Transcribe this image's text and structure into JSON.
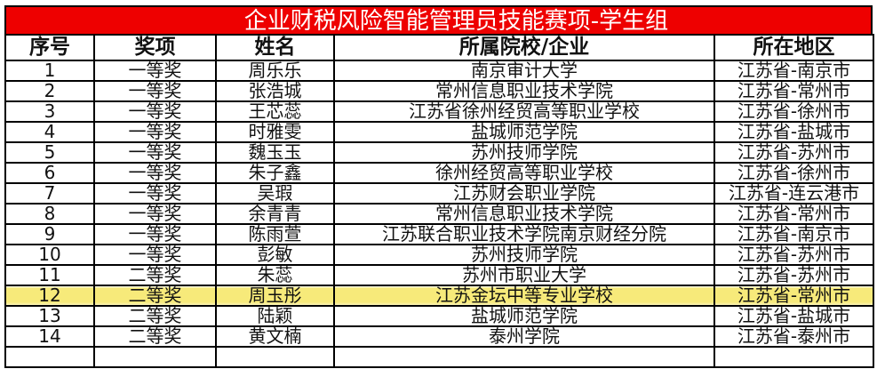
{
  "title": "企业财税风险智能管理员技能赛项-学生组",
  "headers": [
    "序号",
    "奖项",
    "姓名",
    "所属院校/企业",
    "所在地区"
  ],
  "highlight_color": "#f7ea7a",
  "title_bg": "#ee0000",
  "rows": [
    [
      "1",
      "一等奖",
      "周乐乐",
      "南京审计大学",
      "江苏省-南京市"
    ],
    [
      "2",
      "一等奖",
      "张浩城",
      "常州信息职业技术学院",
      "江苏省-常州市"
    ],
    [
      "3",
      "一等奖",
      "王芯蕊",
      "江苏省徐州经贸高等职业学校",
      "江苏省-徐州市"
    ],
    [
      "4",
      "一等奖",
      "时雅雯",
      "盐城师范学院",
      "江苏省-盐城市"
    ],
    [
      "5",
      "一等奖",
      "魏玉玉",
      "苏州技师学院",
      "江苏省-苏州市"
    ],
    [
      "6",
      "一等奖",
      "朱子鑫",
      "徐州经贸高等职业学校",
      "江苏省-徐州市"
    ],
    [
      "7",
      "一等奖",
      "吴瑕",
      "江苏财会职业学院",
      "江苏省-连云港市"
    ],
    [
      "8",
      "一等奖",
      "余青青",
      "常州信息职业技术学院",
      "江苏省-常州市"
    ],
    [
      "9",
      "一等奖",
      "陈雨萱",
      "江苏联合职业技术学院南京财经分院",
      "江苏省-南京市"
    ],
    [
      "10",
      "一等奖",
      "彭敏",
      "苏州技师学院",
      "江苏省-苏州市"
    ],
    [
      "11",
      "二等奖",
      "朱蕊",
      "苏州市职业大学",
      "江苏省-苏州市"
    ],
    [
      "12",
      "二等奖",
      "周玉彤",
      "江苏金坛中等专业学校",
      "江苏省-常州市"
    ],
    [
      "13",
      "二等奖",
      "陆颖",
      "盐城师范学院",
      "江苏省-盐城市"
    ],
    [
      "14",
      "二等奖",
      "黄文楠",
      "泰州学院",
      "江苏省-泰州市"
    ]
  ]
}
